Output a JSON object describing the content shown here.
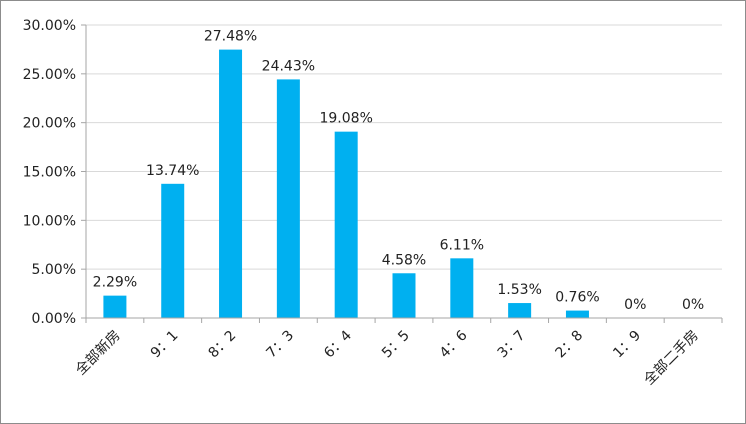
{
  "chart_data": {
    "type": "bar",
    "title": "",
    "xlabel": "",
    "ylabel": "",
    "categories": [
      "全部新房",
      "9：1",
      "8：2",
      "7：3",
      "6：4",
      "5：5",
      "4：6",
      "3：7",
      "2：8",
      "1：9",
      "全部二手房"
    ],
    "values": [
      2.29,
      13.74,
      27.48,
      24.43,
      19.08,
      4.58,
      6.11,
      1.53,
      0.76,
      0,
      0
    ],
    "data_labels": [
      "2.29%",
      "13.74%",
      "27.48%",
      "24.43%",
      "19.08%",
      "4.58%",
      "6.11%",
      "1.53%",
      "0.76%",
      "0%",
      "0%"
    ],
    "ylim": [
      0,
      30
    ],
    "yticks": [
      0,
      5,
      10,
      15,
      20,
      25,
      30
    ],
    "ytick_labels": [
      "0.00%",
      "5.00%",
      "10.00%",
      "15.00%",
      "20.00%",
      "25.00%",
      "30.00%"
    ],
    "grid": true,
    "legend": "none",
    "bar_color": "#00b0f0",
    "grid_color": "#d9d9d9",
    "axis_color": "#a6a6a6"
  }
}
